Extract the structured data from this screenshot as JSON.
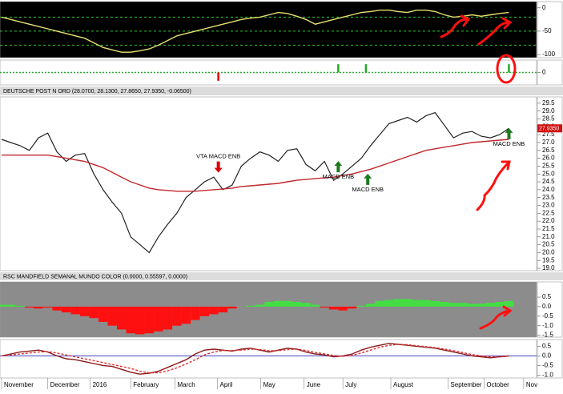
{
  "chart_data": [
    {
      "type": "line",
      "ylim": [
        -106.7,
        13.3
      ],
      "yticks": [
        0,
        -50,
        -100
      ],
      "xlim": [
        0,
        58
      ],
      "background": "#000000",
      "levels": [
        -20,
        -50,
        -80
      ],
      "level_color": "#2ecc2e",
      "x": [
        0,
        1,
        2,
        3,
        4,
        5,
        6,
        7,
        8,
        9,
        10,
        11,
        12,
        13,
        14,
        15,
        16,
        17,
        18,
        19,
        20,
        21,
        22,
        23,
        24,
        25,
        26,
        27,
        28,
        29,
        30,
        31,
        32,
        33,
        34,
        35,
        36,
        37,
        38,
        39,
        40,
        41,
        42,
        43,
        44,
        45,
        46,
        47,
        48,
        49,
        50,
        51,
        52,
        53,
        54,
        55
      ],
      "series": [
        {
          "color": "#e8e070",
          "values": [
            -20,
            -25,
            -30,
            -35,
            -40,
            -45,
            -50,
            -55,
            -60,
            -65,
            -75,
            -85,
            -90,
            -95,
            -95,
            -92,
            -88,
            -80,
            -70,
            -60,
            -55,
            -50,
            -45,
            -40,
            -35,
            -30,
            -25,
            -22,
            -20,
            -15,
            -10,
            -12,
            -18,
            -25,
            -35,
            -30,
            -25,
            -20,
            -15,
            -10,
            -8,
            -5,
            -5,
            -8,
            -10,
            -5,
            -5,
            -8,
            -15,
            -20,
            -18,
            -15,
            -18,
            -15,
            -12,
            -10
          ]
        }
      ]
    },
    {
      "type": "bar",
      "ylim": [
        -1.5,
        1.5
      ],
      "yticks": [
        0
      ],
      "xlim": [
        0,
        58
      ],
      "background": "#ffffff",
      "baseline_color": "#2ea82e",
      "x": [
        23.5,
        36.5,
        39.5,
        55
      ],
      "values": [
        -1,
        1,
        1,
        1
      ],
      "colors": [
        "#e00000",
        "#22aa22",
        "#22aa22",
        "#22aa22"
      ]
    },
    {
      "type": "line",
      "title": "DEUTSCHE POST N ORD (28.0700, 28.1300, 27.8650, 27.9350, -0.06500)",
      "last_label": "27.9350",
      "ylim": [
        18.85,
        29.9
      ],
      "xlim": [
        0,
        58
      ],
      "background": "#ffffff",
      "yticks": [
        {
          "value": 19,
          "label": "19.0"
        },
        19.5,
        {
          "value": 20,
          "label": "20.0"
        },
        20.5,
        {
          "value": 21,
          "label": "21.0"
        },
        21.5,
        {
          "value": 22,
          "label": "22.0"
        },
        22.5,
        {
          "value": 23,
          "label": "23.0"
        },
        23.5,
        {
          "value": 24,
          "label": "24.0"
        },
        24.5,
        {
          "value": 25,
          "label": "25.0"
        },
        25.5,
        {
          "value": 26,
          "label": "26.0"
        },
        26.5,
        {
          "value": 27,
          "label": "27.0"
        },
        27.5,
        {
          "value": 28,
          "label": "28.0"
        },
        28.5,
        {
          "value": 29,
          "label": "29.0"
        },
        29.5
      ],
      "x": [
        0,
        1,
        2,
        3,
        4,
        5,
        6,
        7,
        8,
        9,
        10,
        11,
        12,
        13,
        14,
        15,
        16,
        17,
        18,
        19,
        20,
        21,
        22,
        23,
        24,
        25,
        26,
        27,
        28,
        29,
        30,
        31,
        32,
        33,
        34,
        35,
        36,
        37,
        38,
        39,
        40,
        41,
        42,
        43,
        44,
        45,
        46,
        47,
        48,
        49,
        50,
        51,
        52,
        53,
        54,
        55
      ],
      "series": [
        {
          "color": "#222222",
          "values": [
            27.2,
            27.0,
            26.8,
            26.5,
            27.3,
            27.6,
            26.4,
            25.8,
            26.2,
            26.3,
            25.0,
            24.0,
            23.2,
            22.5,
            21.0,
            20.5,
            20.0,
            21.0,
            21.8,
            22.5,
            23.5,
            24.0,
            24.5,
            24.8,
            24.0,
            24.3,
            25.5,
            26.0,
            26.4,
            26.2,
            25.8,
            26.5,
            26.6,
            25.6,
            25.2,
            25.8,
            24.6,
            25.0,
            25.5,
            26.0,
            26.8,
            27.5,
            28.2,
            28.4,
            28.6,
            28.3,
            28.7,
            28.9,
            28.1,
            27.3,
            27.6,
            27.7,
            27.4,
            27.3,
            27.5,
            27.9
          ]
        },
        {
          "color": "#c0282d",
          "values": [
            26.2,
            26.2,
            26.2,
            26.2,
            26.2,
            26.2,
            26.1,
            26.0,
            25.9,
            25.8,
            25.6,
            25.4,
            25.1,
            24.8,
            24.5,
            24.3,
            24.1,
            24.0,
            23.95,
            23.9,
            23.9,
            23.9,
            23.95,
            24.0,
            24.05,
            24.1,
            24.2,
            24.25,
            24.3,
            24.35,
            24.4,
            24.5,
            24.6,
            24.65,
            24.7,
            24.75,
            24.8,
            24.9,
            25.0,
            25.15,
            25.3,
            25.5,
            25.7,
            25.9,
            26.1,
            26.3,
            26.5,
            26.6,
            26.7,
            26.8,
            26.9,
            27.0,
            27.05,
            27.1,
            27.15,
            27.2
          ]
        }
      ],
      "annotations": [
        {
          "text": "VTA MACD ENB",
          "x": 23.5,
          "y": 26.1,
          "arrow": "down",
          "color": "#e00000"
        },
        {
          "text": "MACD ENB",
          "x": 36.5,
          "y": 24.8,
          "arrow": "up",
          "color": "#1e7a1e"
        },
        {
          "text": "MACD ENB",
          "x": 39.7,
          "y": 24.0,
          "arrow": "up",
          "color": "#1e7a1e"
        },
        {
          "text": "MACD ENB",
          "x": 55,
          "y": 26.9,
          "arrow": "up",
          "color": "#1e7a1e"
        }
      ]
    },
    {
      "type": "bar",
      "title": "RSC MANDFIELD SEMANAL MUNDO COLOR (0.0000, 0.55597, 0.0000)",
      "ylim": [
        -1.6,
        1.3
      ],
      "xlim": [
        0,
        58
      ],
      "background": "#8c8c8c",
      "positive_color": "#44dd44",
      "negative_color": "#ff1010",
      "yticks": [
        0.5,
        {
          "value": 0,
          "label": "0.0"
        },
        -0.5,
        {
          "value": -1,
          "label": "-1.0"
        },
        -1.5
      ],
      "x": [
        0,
        1,
        2,
        3,
        4,
        5,
        6,
        7,
        8,
        9,
        10,
        11,
        12,
        13,
        14,
        15,
        16,
        17,
        18,
        19,
        20,
        21,
        22,
        23,
        24,
        25,
        26,
        27,
        28,
        29,
        30,
        31,
        32,
        33,
        34,
        35,
        36,
        37,
        38,
        39,
        40,
        41,
        42,
        43,
        44,
        45,
        46,
        47,
        48,
        49,
        50,
        51,
        52,
        53,
        54,
        55
      ],
      "values": [
        0.1,
        0.1,
        0.05,
        -0.05,
        -0.1,
        -0.05,
        -0.2,
        -0.3,
        -0.4,
        -0.5,
        -0.6,
        -0.8,
        -1.0,
        -1.2,
        -1.4,
        -1.45,
        -1.4,
        -1.3,
        -1.2,
        -1.0,
        -0.9,
        -0.7,
        -0.5,
        -0.4,
        -0.3,
        -0.1,
        0.0,
        0.05,
        0.1,
        0.25,
        0.3,
        0.3,
        0.25,
        0.2,
        0.1,
        -0.05,
        -0.15,
        -0.2,
        -0.1,
        0.05,
        0.15,
        0.3,
        0.35,
        0.4,
        0.4,
        0.35,
        0.35,
        0.3,
        0.25,
        0.2,
        0.2,
        0.15,
        0.15,
        0.2,
        0.25,
        0.3
      ]
    },
    {
      "type": "line",
      "ylim": [
        -1.15,
        0.85
      ],
      "xlim": [
        0,
        58
      ],
      "background": "#ffffff",
      "zero_line_color": "#4040c0",
      "yticks": [
        0.5,
        {
          "value": 0,
          "label": "0.0"
        },
        -0.5,
        {
          "value": -1,
          "label": "-1.0"
        }
      ],
      "xticks": [
        {
          "value": 0,
          "label": "November"
        },
        {
          "value": 5,
          "label": "December"
        },
        {
          "value": 9.6,
          "label": "2016"
        },
        {
          "value": 14,
          "label": "February"
        },
        {
          "value": 18.8,
          "label": "March"
        },
        {
          "value": 23.4,
          "label": "April"
        },
        {
          "value": 28.1,
          "label": "May"
        },
        {
          "value": 32.8,
          "label": "June"
        },
        {
          "value": 37,
          "label": "July"
        },
        {
          "value": 42.2,
          "label": "August"
        },
        {
          "value": 48.4,
          "label": "September"
        },
        {
          "value": 52.3,
          "label": "October"
        },
        {
          "value": 56.6,
          "label": "Nov"
        }
      ],
      "x": [
        0,
        1,
        2,
        3,
        4,
        5,
        6,
        7,
        8,
        9,
        10,
        11,
        12,
        13,
        14,
        15,
        16,
        17,
        18,
        19,
        20,
        21,
        22,
        23,
        24,
        25,
        26,
        27,
        28,
        29,
        30,
        31,
        32,
        33,
        34,
        35,
        36,
        37,
        38,
        39,
        40,
        41,
        42,
        43,
        44,
        45,
        46,
        47,
        48,
        49,
        50,
        51,
        52,
        53,
        54,
        55
      ],
      "series": [
        {
          "color": "#8b1a1a",
          "style": "solid",
          "values": [
            0.0,
            0.1,
            0.2,
            0.25,
            0.3,
            0.2,
            0.0,
            -0.15,
            -0.2,
            -0.3,
            -0.4,
            -0.5,
            -0.55,
            -0.7,
            -0.85,
            -0.95,
            -0.9,
            -0.8,
            -0.6,
            -0.4,
            -0.2,
            0.1,
            0.3,
            0.35,
            0.3,
            0.25,
            0.35,
            0.4,
            0.3,
            0.2,
            0.3,
            0.4,
            0.35,
            0.2,
            0.1,
            0.05,
            -0.05,
            0.0,
            0.1,
            0.3,
            0.45,
            0.55,
            0.65,
            0.6,
            0.55,
            0.5,
            0.45,
            0.4,
            0.3,
            0.2,
            0.1,
            0.0,
            -0.05,
            -0.1,
            -0.05,
            0.0
          ]
        },
        {
          "color": "#e03030",
          "style": "dashed",
          "values": [
            0.0,
            0.05,
            0.1,
            0.15,
            0.2,
            0.22,
            0.15,
            0.05,
            -0.05,
            -0.15,
            -0.25,
            -0.35,
            -0.45,
            -0.55,
            -0.65,
            -0.8,
            -0.88,
            -0.88,
            -0.78,
            -0.62,
            -0.42,
            -0.2,
            0.05,
            0.2,
            0.28,
            0.28,
            0.3,
            0.35,
            0.33,
            0.27,
            0.27,
            0.33,
            0.35,
            0.28,
            0.18,
            0.1,
            0.02,
            -0.02,
            0.03,
            0.15,
            0.3,
            0.45,
            0.55,
            0.6,
            0.58,
            0.53,
            0.48,
            0.43,
            0.36,
            0.27,
            0.17,
            0.07,
            0.0,
            -0.05,
            -0.05,
            -0.02
          ]
        }
      ]
    }
  ]
}
